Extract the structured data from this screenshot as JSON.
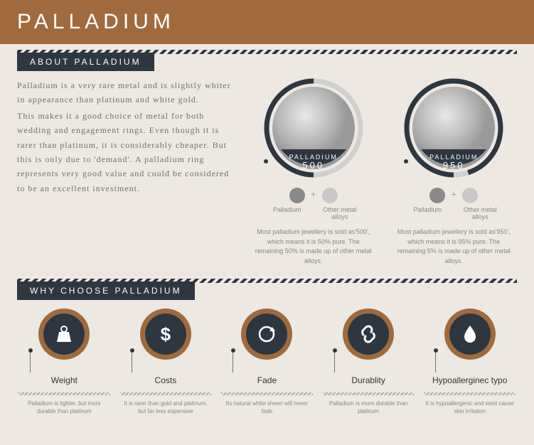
{
  "colors": {
    "accent": "#a06a3e",
    "dark": "#2e3640",
    "text_muted": "#707070",
    "swatch_pd": "#8a8a8a",
    "swatch_other": "#c8c8c8"
  },
  "header": {
    "title": "PALLADIUM"
  },
  "sections": {
    "about_title": "ABOUT PALLADIUM",
    "why_title": "WHY CHOOSE PALLADIUM"
  },
  "about": {
    "p1": "Palladium is a very rare metal and is slightly whiter in appearance than platinum and white gold.",
    "p2": "This makes it a good choice of metal for both wedding and engagement rings. Even though it is rarer than platinum, it is considerably cheaper. But this is only due to 'demand'. A palladium ring represents very good value and could be considered to be an excellent investment."
  },
  "coins": [
    {
      "label": "PALLADIUM",
      "value": "500",
      "arc_percent": 50,
      "comp_plus": "+",
      "comp_a": "Palladium",
      "comp_b": "Other metal alloys",
      "desc": "Most palladium jewellery is sold as'500', which means it is 50% pure. The remaining 50% is made up of other metal alloys."
    },
    {
      "label": "PALLADIUM",
      "value": "950",
      "arc_percent": 95,
      "comp_plus": "+",
      "comp_a": "Palladium",
      "comp_b": "Other metal alloys",
      "desc": "Most palladium jewellery is sold as'950', which means it is 95% pure. The remaining 5% is made up of other metal alloys."
    }
  ],
  "reasons": [
    {
      "icon": "weight",
      "title": "Weight",
      "desc": "Palladium is lighter, but more durable than platinum"
    },
    {
      "icon": "dollar",
      "title": "Costs",
      "desc": "It is rarer than gold and platinum, but far less expensive"
    },
    {
      "icon": "refresh",
      "title": "Fade",
      "desc": "Its natural white sheen will never fade"
    },
    {
      "icon": "link",
      "title": "Durablity",
      "desc": "Palladium is more durable than platinum"
    },
    {
      "icon": "drop",
      "title": "Hypoallerginec typo",
      "desc": "It is hypoallergenic and wont cause skin irritation"
    }
  ]
}
